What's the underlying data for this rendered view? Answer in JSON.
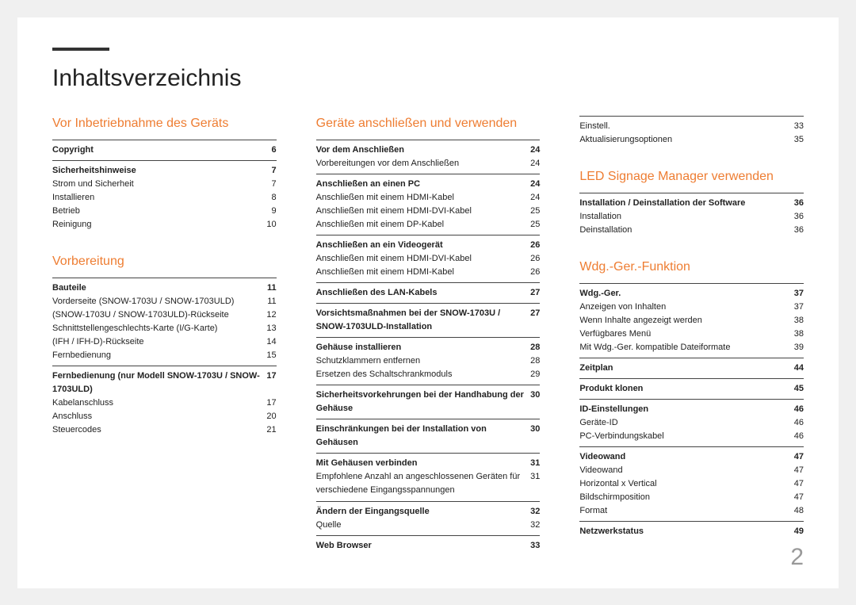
{
  "title": "Inhaltsverzeichnis",
  "page_number": "2",
  "accent": "#ee7d32",
  "columns": [
    {
      "sections": [
        {
          "title": "Vor Inbetriebnahme des Geräts",
          "groups": [
            {
              "bold": [
                "Copyright",
                "6"
              ],
              "items": []
            },
            {
              "bold": [
                "Sicherheitshinweise",
                "7"
              ],
              "items": [
                [
                  "Strom und Sicherheit",
                  "7"
                ],
                [
                  "Installieren",
                  "8"
                ],
                [
                  "Betrieb",
                  "9"
                ],
                [
                  "Reinigung",
                  "10"
                ]
              ]
            }
          ]
        },
        {
          "title": "Vorbereitung",
          "spaced": true,
          "groups": [
            {
              "bold": [
                "Bauteile",
                "11"
              ],
              "items": [
                [
                  "Vorderseite (SNOW-1703U / SNOW-1703ULD)",
                  "11"
                ],
                [
                  "(SNOW-1703U / SNOW-1703ULD)-Rückseite",
                  "12"
                ],
                [
                  "Schnittstellengeschlechts-Karte (I/G-Karte)",
                  "13"
                ],
                [
                  "(IFH / IFH-D)-Rückseite",
                  "14"
                ],
                [
                  "Fernbedienung",
                  "15"
                ]
              ]
            },
            {
              "bold": [
                "Fernbedienung (nur Modell SNOW-1703U / SNOW-1703ULD)",
                "17"
              ],
              "items": [
                [
                  "Kabelanschluss",
                  "17"
                ],
                [
                  "Anschluss",
                  "20"
                ],
                [
                  "Steuercodes",
                  "21"
                ]
              ]
            }
          ]
        }
      ]
    },
    {
      "sections": [
        {
          "title": "Geräte anschließen und verwenden",
          "groups": [
            {
              "bold": [
                "Vor dem Anschließen",
                "24"
              ],
              "items": [
                [
                  "Vorbereitungen vor dem Anschließen",
                  "24"
                ]
              ]
            },
            {
              "bold": [
                "Anschließen an einen PC",
                "24"
              ],
              "items": [
                [
                  "Anschließen mit einem HDMI-Kabel",
                  "24"
                ],
                [
                  "Anschließen mit einem HDMI-DVI-Kabel",
                  "25"
                ],
                [
                  "Anschließen mit einem DP-Kabel",
                  "25"
                ]
              ]
            },
            {
              "bold": [
                "Anschließen an ein Videogerät",
                "26"
              ],
              "items": [
                [
                  "Anschließen mit einem HDMI-DVI-Kabel",
                  "26"
                ],
                [
                  "Anschließen mit einem HDMI-Kabel",
                  "26"
                ]
              ]
            },
            {
              "bold": [
                "Anschließen des LAN-Kabels",
                "27"
              ],
              "items": []
            },
            {
              "bold": [
                "Vorsichtsmaßnahmen bei der SNOW-1703U / SNOW-1703ULD-Installation",
                "27"
              ],
              "items": []
            },
            {
              "bold": [
                "Gehäuse installieren",
                "28"
              ],
              "items": [
                [
                  "Schutzklammern entfernen",
                  "28"
                ],
                [
                  "Ersetzen des Schaltschrankmoduls",
                  "29"
                ]
              ]
            },
            {
              "bold": [
                "Sicherheitsvorkehrungen bei der Handhabung der Gehäuse",
                "30"
              ],
              "items": []
            },
            {
              "bold": [
                "Einschränkungen bei der Installation von Gehäusen",
                "30"
              ],
              "items": []
            },
            {
              "bold": [
                "Mit Gehäusen verbinden",
                "31"
              ],
              "items": [
                [
                  "Empfohlene Anzahl an angeschlossenen Geräten für verschiedene Eingangsspannungen",
                  "31"
                ]
              ]
            },
            {
              "bold": [
                "Ändern der Eingangsquelle",
                "32"
              ],
              "items": [
                [
                  "Quelle",
                  "32"
                ]
              ]
            },
            {
              "bold": [
                "Web Browser",
                "33"
              ],
              "items": []
            }
          ]
        }
      ]
    },
    {
      "sections": [
        {
          "title": "",
          "groups": [
            {
              "bold": null,
              "items": [
                [
                  "Einstell.",
                  "33"
                ],
                [
                  "Aktualisierungsoptionen",
                  "35"
                ]
              ]
            }
          ]
        },
        {
          "title": "LED Signage Manager verwenden",
          "spaced": true,
          "groups": [
            {
              "bold": [
                "Installation / Deinstallation der Software",
                "36"
              ],
              "items": [
                [
                  "Installation",
                  "36"
                ],
                [
                  "Deinstallation",
                  "36"
                ]
              ]
            }
          ]
        },
        {
          "title": "Wdg.-Ger.-Funktion",
          "spaced": true,
          "groups": [
            {
              "bold": [
                "Wdg.-Ger.",
                "37"
              ],
              "items": [
                [
                  "Anzeigen von Inhalten",
                  "37"
                ],
                [
                  "Wenn Inhalte angezeigt werden",
                  "38"
                ],
                [
                  "Verfügbares Menü",
                  "38"
                ],
                [
                  "Mit Wdg.-Ger. kompatible Dateiformate",
                  "39"
                ]
              ]
            },
            {
              "bold": [
                "Zeitplan",
                "44"
              ],
              "items": []
            },
            {
              "bold": [
                "Produkt klonen",
                "45"
              ],
              "items": []
            },
            {
              "bold": [
                "ID-Einstellungen",
                "46"
              ],
              "items": [
                [
                  "Geräte-ID",
                  "46"
                ],
                [
                  "PC-Verbindungskabel",
                  "46"
                ]
              ]
            },
            {
              "bold": [
                "Videowand",
                "47"
              ],
              "items": [
                [
                  "Videowand",
                  "47"
                ],
                [
                  "Horizontal x Vertical",
                  "47"
                ],
                [
                  "Bildschirmposition",
                  "47"
                ],
                [
                  "Format",
                  "48"
                ]
              ]
            },
            {
              "bold": [
                "Netzwerkstatus",
                "49"
              ],
              "items": []
            }
          ]
        }
      ]
    }
  ]
}
